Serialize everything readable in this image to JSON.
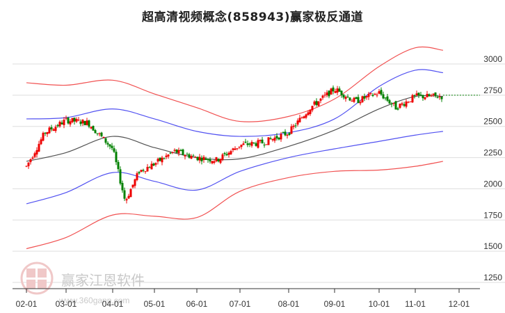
{
  "title": "超高清视频概念(858943)赢家极反通道",
  "watermark": {
    "brand": "赢家江恩软件",
    "seal": [
      "江",
      "赢",
      "恩",
      "家"
    ],
    "url": "www.360gann.com"
  },
  "colors": {
    "up_candle": "#ee0000",
    "down_candle": "#008000",
    "outer_band": "#ee3333",
    "inner_band": "#3333ee",
    "mid_line": "#333333",
    "last_price_line": "#008000",
    "grid": "#dddddd"
  },
  "chart_data": {
    "type": "candlestick",
    "title": "超高清视频概念(858943)赢家极反通道",
    "xlabel": "",
    "ylabel": "",
    "y_axis_position": "right",
    "ylim": [
      1200,
      3200
    ],
    "yticks": [
      1250,
      1500,
      1750,
      2000,
      2250,
      2500,
      2750,
      3000
    ],
    "xticks": [
      "02-01",
      "03-01",
      "04-01",
      "05-01",
      "06-01",
      "07-01",
      "08-01",
      "09-01",
      "10-01",
      "11-01",
      "12-01"
    ],
    "grid": true,
    "legend": null,
    "last_price": 2750,
    "series": [
      {
        "name": "upper_outer_band",
        "color": "#ee3333",
        "x": [
          "02-01",
          "03-01",
          "04-01",
          "05-01",
          "06-01",
          "07-01",
          "08-01",
          "09-01",
          "10-01",
          "11-01",
          "11-20"
        ],
        "values": [
          2850,
          2830,
          2870,
          2760,
          2650,
          2540,
          2580,
          2720,
          2980,
          3130,
          3110
        ]
      },
      {
        "name": "upper_inner_band",
        "color": "#3333ee",
        "x": [
          "02-01",
          "03-01",
          "04-01",
          "05-01",
          "06-01",
          "07-01",
          "08-01",
          "09-01",
          "10-01",
          "11-01",
          "11-20"
        ],
        "values": [
          2560,
          2570,
          2640,
          2560,
          2460,
          2420,
          2450,
          2560,
          2820,
          2950,
          2930
        ]
      },
      {
        "name": "middle_line",
        "color": "#333333",
        "x": [
          "02-01",
          "03-01",
          "04-01",
          "05-01",
          "06-01",
          "07-01",
          "08-01",
          "09-01",
          "10-01",
          "11-01",
          "11-20"
        ],
        "values": [
          2220,
          2290,
          2420,
          2330,
          2250,
          2240,
          2340,
          2470,
          2640,
          2740,
          2740
        ]
      },
      {
        "name": "lower_inner_band",
        "color": "#3333ee",
        "x": [
          "02-01",
          "03-01",
          "04-01",
          "05-01",
          "06-01",
          "07-01",
          "08-01",
          "09-01",
          "10-01",
          "11-01",
          "11-20"
        ],
        "values": [
          1880,
          1970,
          2130,
          2060,
          1990,
          2140,
          2250,
          2320,
          2380,
          2430,
          2460
        ]
      },
      {
        "name": "lower_outer_band",
        "color": "#ee3333",
        "x": [
          "02-01",
          "03-01",
          "04-01",
          "05-01",
          "06-01",
          "07-01",
          "08-01",
          "09-01",
          "10-01",
          "11-01",
          "11-20"
        ],
        "values": [
          1520,
          1610,
          1790,
          1780,
          1770,
          1980,
          2090,
          2140,
          2150,
          2180,
          2220
        ]
      },
      {
        "name": "close",
        "type": "candlestick",
        "x": [
          "02-01",
          "02-15",
          "03-01",
          "03-15",
          "04-01",
          "04-10",
          "04-20",
          "05-01",
          "05-15",
          "06-01",
          "06-15",
          "07-01",
          "07-15",
          "08-01",
          "08-15",
          "09-01",
          "09-15",
          "10-01",
          "10-15",
          "11-01",
          "11-20"
        ],
        "values": [
          2180,
          2450,
          2550,
          2530,
          2320,
          1900,
          2140,
          2200,
          2300,
          2250,
          2230,
          2350,
          2370,
          2450,
          2650,
          2800,
          2700,
          2770,
          2650,
          2740,
          2740
        ]
      }
    ]
  }
}
